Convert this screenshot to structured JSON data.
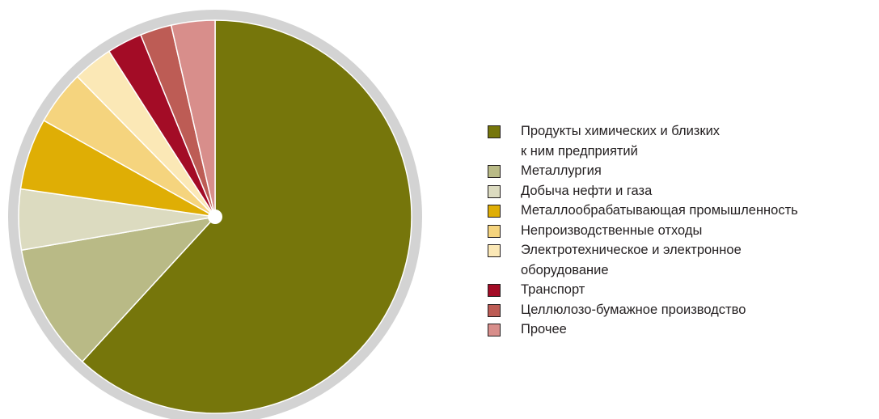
{
  "chart_data": {
    "type": "pie",
    "title": "",
    "start": "12 o'clock, clockwise",
    "slices": [
      {
        "label": "Продукты химических и близких к ним предприятий",
        "value": 62.0,
        "color": "#76760b"
      },
      {
        "label": "Металлургия",
        "value": 10.5,
        "color": "#b9ba86"
      },
      {
        "label": "Добыча нефти и газа",
        "value": 5.0,
        "color": "#dcdbc0"
      },
      {
        "label": "Металлообрабатывающая промышленность",
        "value": 5.9,
        "color": "#dfae05"
      },
      {
        "label": "Непроизводственные отходы",
        "value": 4.5,
        "color": "#f5d47e"
      },
      {
        "label": "Электротехническое и электронное оборудование",
        "value": 3.3,
        "color": "#fbe8b6"
      },
      {
        "label": "Транспорт",
        "value": 2.9,
        "color": "#a30c26"
      },
      {
        "label": "Целлюлозо-бумажное производство",
        "value": 2.6,
        "color": "#bd5c55"
      },
      {
        "label": "Прочее",
        "value": 3.6,
        "color": "#d88e8b"
      }
    ],
    "legend_position": "right",
    "ring_color": "#d3d3d3",
    "center_dot_color": "#ffffff"
  },
  "legend": {
    "items": [
      {
        "lines": [
          "Продукты химических и близких",
          "к ним предприятий"
        ],
        "color": "#76760b"
      },
      {
        "lines": [
          "Металлургия"
        ],
        "color": "#b9ba86"
      },
      {
        "lines": [
          "Добыча нефти и газа"
        ],
        "color": "#dcdbc0"
      },
      {
        "lines": [
          "Металлообрабатывающая промышленность"
        ],
        "color": "#dfae05"
      },
      {
        "lines": [
          "Непроизводственные отходы"
        ],
        "color": "#f5d47e"
      },
      {
        "lines": [
          "Электротехническое и электронное",
          "оборудование"
        ],
        "color": "#fbe8b6"
      },
      {
        "lines": [
          "Транспорт"
        ],
        "color": "#a30c26"
      },
      {
        "lines": [
          "Целлюлозо-бумажное производство"
        ],
        "color": "#bd5c55"
      },
      {
        "lines": [
          "Прочее"
        ],
        "color": "#d88e8b"
      }
    ]
  }
}
